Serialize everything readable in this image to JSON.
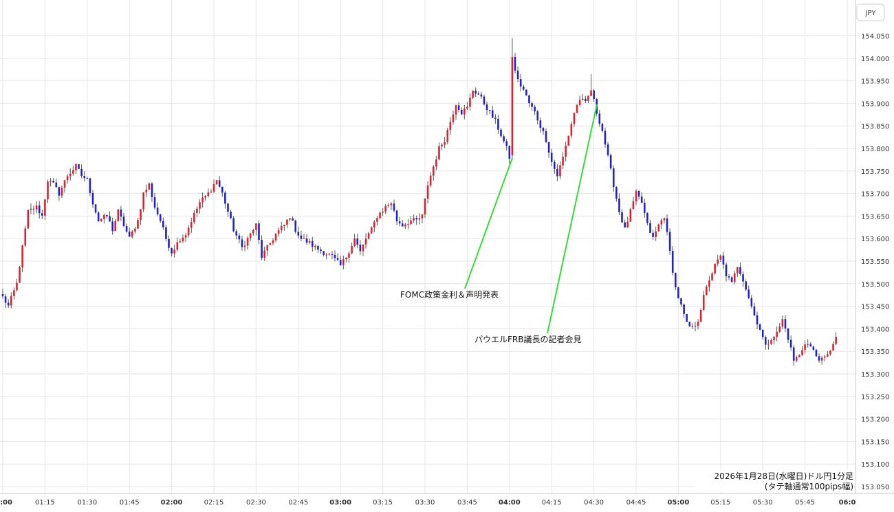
{
  "chart_data": {
    "type": "candlestick",
    "currency_label": "JPY",
    "caption_line1": "2026年1月28日(水曜日)ドル円1分足",
    "caption_line2": "(タテ軸通常100pips幅)",
    "x_ticks": [
      ":00",
      "01:15",
      "01:30",
      "01:45",
      "02:00",
      "02:15",
      "02:30",
      "02:45",
      "03:00",
      "03:15",
      "03:30",
      "03:45",
      "04:00",
      "04:15",
      "04:30",
      "04:45",
      "05:00",
      "05:15",
      "05:30",
      "05:45",
      "06:0"
    ],
    "x_ticks_bold": [
      ":00",
      "02:00",
      "03:00",
      "04:00",
      "05:00",
      "06:0"
    ],
    "y_ticks": [
      "154.050",
      "154.000",
      "153.950",
      "153.900",
      "153.850",
      "153.800",
      "153.750",
      "153.700",
      "153.650",
      "153.600",
      "153.550",
      "153.500",
      "153.450",
      "153.400",
      "153.350",
      "153.300",
      "153.250",
      "153.200",
      "153.150",
      "153.100",
      "153.050"
    ],
    "ylim": [
      153.05,
      154.05
    ],
    "grid": true,
    "colors": {
      "up": "#e0202a",
      "down": "#1e22cc",
      "annotation_line": "#33dd33"
    },
    "annotations": [
      {
        "text": "FOMC政策金利＆声明発表",
        "time": "04:00"
      },
      {
        "text": "パウエルFRB議長の記者会見",
        "time": "04:30"
      }
    ],
    "anchors": [
      [
        "01:00",
        153.47
      ],
      [
        "01:02",
        153.45
      ],
      [
        "01:05",
        153.5
      ],
      [
        "01:07",
        153.58
      ],
      [
        "01:09",
        153.66
      ],
      [
        "01:12",
        153.67
      ],
      [
        "01:14",
        153.65
      ],
      [
        "01:16",
        153.73
      ],
      [
        "01:18",
        153.72
      ],
      [
        "01:20",
        153.7
      ],
      [
        "01:23",
        153.74
      ],
      [
        "01:26",
        153.76
      ],
      [
        "01:28",
        153.74
      ],
      [
        "01:30",
        153.73
      ],
      [
        "01:32",
        153.68
      ],
      [
        "01:34",
        153.64
      ],
      [
        "01:37",
        153.65
      ],
      [
        "01:39",
        153.62
      ],
      [
        "01:41",
        153.66
      ],
      [
        "01:43",
        153.63
      ],
      [
        "01:45",
        153.6
      ],
      [
        "01:48",
        153.64
      ],
      [
        "01:50",
        153.7
      ],
      [
        "01:52",
        153.72
      ],
      [
        "01:54",
        153.67
      ],
      [
        "01:56",
        153.64
      ],
      [
        "01:58",
        153.6
      ],
      [
        "02:00",
        153.57
      ],
      [
        "02:03",
        153.6
      ],
      [
        "02:05",
        153.61
      ],
      [
        "02:07",
        153.64
      ],
      [
        "02:10",
        153.68
      ],
      [
        "02:13",
        153.7
      ],
      [
        "02:16",
        153.73
      ],
      [
        "02:18",
        153.7
      ],
      [
        "02:20",
        153.66
      ],
      [
        "02:22",
        153.62
      ],
      [
        "02:25",
        153.58
      ],
      [
        "02:28",
        153.61
      ],
      [
        "02:30",
        153.63
      ],
      [
        "02:32",
        153.56
      ],
      [
        "02:34",
        153.58
      ],
      [
        "02:37",
        153.61
      ],
      [
        "02:40",
        153.63
      ],
      [
        "02:42",
        153.65
      ],
      [
        "02:44",
        153.62
      ],
      [
        "02:46",
        153.6
      ],
      [
        "02:49",
        153.59
      ],
      [
        "02:51",
        153.58
      ],
      [
        "02:54",
        153.57
      ],
      [
        "02:57",
        153.56
      ],
      [
        "03:00",
        153.54
      ],
      [
        "03:02",
        153.56
      ],
      [
        "03:05",
        153.6
      ],
      [
        "03:07",
        153.57
      ],
      [
        "03:09",
        153.6
      ],
      [
        "03:11",
        153.62
      ],
      [
        "03:13",
        153.65
      ],
      [
        "03:16",
        153.67
      ],
      [
        "03:18",
        153.68
      ],
      [
        "03:20",
        153.64
      ],
      [
        "03:22",
        153.63
      ],
      [
        "03:25",
        153.64
      ],
      [
        "03:27",
        153.64
      ],
      [
        "03:29",
        153.65
      ],
      [
        "03:31",
        153.72
      ],
      [
        "03:33",
        153.76
      ],
      [
        "03:35",
        153.8
      ],
      [
        "03:37",
        153.82
      ],
      [
        "03:39",
        153.86
      ],
      [
        "03:41",
        153.9
      ],
      [
        "03:43",
        153.88
      ],
      [
        "03:45",
        153.89
      ],
      [
        "03:47",
        153.93
      ],
      [
        "03:49",
        153.92
      ],
      [
        "03:51",
        153.9
      ],
      [
        "03:53",
        153.88
      ],
      [
        "03:55",
        153.86
      ],
      [
        "03:57",
        153.83
      ],
      [
        "03:59",
        153.8
      ],
      [
        "04:00",
        153.78
      ],
      [
        "04:01",
        154.0
      ],
      [
        "04:03",
        153.95
      ],
      [
        "04:05",
        153.93
      ],
      [
        "04:07",
        153.9
      ],
      [
        "04:09",
        153.88
      ],
      [
        "04:11",
        153.85
      ],
      [
        "04:13",
        153.82
      ],
      [
        "04:15",
        153.77
      ],
      [
        "04:17",
        153.74
      ],
      [
        "04:19",
        153.78
      ],
      [
        "04:21",
        153.83
      ],
      [
        "04:23",
        153.88
      ],
      [
        "04:25",
        153.91
      ],
      [
        "04:27",
        153.9
      ],
      [
        "04:29",
        153.93
      ],
      [
        "04:31",
        153.88
      ],
      [
        "04:33",
        153.84
      ],
      [
        "04:35",
        153.78
      ],
      [
        "04:37",
        153.72
      ],
      [
        "04:39",
        153.66
      ],
      [
        "04:41",
        153.62
      ],
      [
        "04:43",
        153.66
      ],
      [
        "04:45",
        153.7
      ],
      [
        "04:47",
        153.68
      ],
      [
        "04:49",
        153.63
      ],
      [
        "04:51",
        153.6
      ],
      [
        "04:53",
        153.63
      ],
      [
        "04:55",
        153.65
      ],
      [
        "04:57",
        153.57
      ],
      [
        "04:59",
        153.49
      ],
      [
        "05:01",
        153.45
      ],
      [
        "05:03",
        153.41
      ],
      [
        "05:05",
        153.4
      ],
      [
        "05:07",
        153.42
      ],
      [
        "05:09",
        153.47
      ],
      [
        "05:11",
        153.51
      ],
      [
        "05:13",
        153.54
      ],
      [
        "05:15",
        153.56
      ],
      [
        "05:17",
        153.52
      ],
      [
        "05:19",
        153.5
      ],
      [
        "05:21",
        153.54
      ],
      [
        "05:23",
        153.51
      ],
      [
        "05:25",
        153.47
      ],
      [
        "05:27",
        153.43
      ],
      [
        "05:29",
        153.4
      ],
      [
        "05:31",
        153.36
      ],
      [
        "05:33",
        153.38
      ],
      [
        "05:35",
        153.39
      ],
      [
        "05:37",
        153.42
      ],
      [
        "05:39",
        153.38
      ],
      [
        "05:41",
        153.33
      ],
      [
        "05:43",
        153.34
      ],
      [
        "05:45",
        153.37
      ],
      [
        "05:47",
        153.36
      ],
      [
        "05:49",
        153.34
      ],
      [
        "05:51",
        153.33
      ],
      [
        "05:53",
        153.34
      ],
      [
        "05:55",
        153.37
      ],
      [
        "05:56",
        153.38
      ]
    ]
  }
}
